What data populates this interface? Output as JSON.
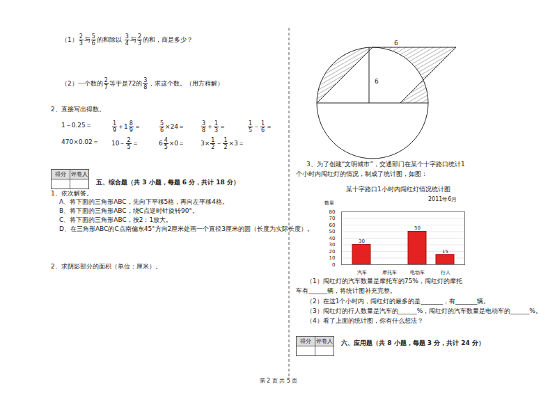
{
  "left": {
    "q1": [
      {
        "t": "（1）"
      },
      {
        "frac": [
          2,
          3
        ]
      },
      {
        "t": "与"
      },
      {
        "frac": [
          5,
          6
        ]
      },
      {
        "t": "的和除以 "
      },
      {
        "frac": [
          3,
          4
        ]
      },
      {
        "t": "与"
      },
      {
        "frac": [
          2,
          3
        ]
      },
      {
        "t": "的和，商是多少？"
      }
    ],
    "q2": [
      {
        "t": "（2）一个数的"
      },
      {
        "frac": [
          2,
          7
        ]
      },
      {
        "t": "等于是72的"
      },
      {
        "frac": [
          3,
          8
        ]
      },
      {
        "t": "，求这个数。（用方程解）"
      }
    ],
    "q_direct": "2、直接写出得数。",
    "calc_rows": [
      [
        [
          {
            "t": "1－0.25＝"
          }
        ],
        [
          {
            "frac": [
              1,
              9
            ]
          },
          {
            "t": "＋1"
          },
          {
            "frac": [
              8,
              9
            ]
          },
          {
            "t": "＝"
          }
        ],
        [
          {
            "frac": [
              5,
              6
            ]
          },
          {
            "t": "×24＝"
          }
        ],
        [
          {
            "frac": [
              3,
              8
            ]
          },
          {
            "t": "＋"
          },
          {
            "frac": [
              1,
              3
            ]
          },
          {
            "t": "＝"
          }
        ],
        [
          {
            "frac": [
              1,
              5
            ]
          },
          {
            "t": "－"
          },
          {
            "frac": [
              1,
              6
            ]
          },
          {
            "t": "＝"
          }
        ]
      ],
      [
        [
          {
            "t": "470×0.02＝"
          }
        ],
        [
          {
            "t": "10－"
          },
          {
            "frac": [
              2,
              5
            ]
          },
          {
            "t": "＝"
          }
        ],
        [
          {
            "t": "6"
          },
          {
            "frac": [
              4,
              5
            ]
          },
          {
            "t": "×0＝"
          }
        ],
        [
          {
            "t": "3×"
          },
          {
            "frac": [
              1,
              2
            ]
          },
          {
            "t": "－"
          },
          {
            "frac": [
              1,
              2
            ]
          },
          {
            "t": "×3＝"
          }
        ]
      ]
    ],
    "score_box": [
      "得分",
      "评卷人"
    ],
    "section5": "五、综合题（共 3 小题，每题 6 分，共计 18 分）",
    "s5_intro": "1、依次解答。",
    "s5_items": [
      "A、将下面的三角形ABC，先向下平移5格，再向左平移4格。",
      "B、将下面的三角形ABC，绕C点逆时针旋转90°。",
      "C、将下面的三角形ABC，按2：1放大。",
      "D、在三角形ABC的C点南偏东45°方向2厘米处画一个直径3厘米的圆（长度为实际长度）。"
    ],
    "q_shadow": "2、求阴影部分的面积（单位：厘米）。"
  },
  "right": {
    "figure_labels": {
      "top": 6,
      "height": 6
    },
    "q3": "3、为了创建“文明城市”，交通部门在某个十字路口统计1个小时内闯红灯的情况，制成了统计图，如图：",
    "subquestions": [
      "（1）闯红灯的汽车数量是摩托车的75%，闯红灯的摩托车有______辆，将统计图补充完整。",
      "（2）在这1个小时内，闯红灯的最多的是_______，有_______辆。",
      "（3）闯红灯的行人数量是汽车的______%，闯红灯的汽车数量是电动车的______%。",
      "（4）看了上面的统计图，你有什么想法？"
    ],
    "score_box": [
      "得分",
      "评卷人"
    ],
    "section6": "六、应用题（共 8 小题，每题 3 分，共计 24 分）"
  },
  "chart_data": {
    "type": "bar",
    "title": "某十字路口1小时内闯红灯情况统计图",
    "subtitle": "2011年6月",
    "y_label": "数量",
    "categories": [
      "汽车",
      "摩托车",
      "电动车",
      "行人"
    ],
    "values": [
      30,
      null,
      50,
      15
    ],
    "color": "#e52222",
    "ylim": [
      0,
      80
    ],
    "yticks": [
      0,
      10,
      20,
      30,
      40,
      50,
      60,
      70,
      80
    ],
    "grid": true,
    "data_labels": true
  },
  "footer": "第 2 页 共 5 页"
}
